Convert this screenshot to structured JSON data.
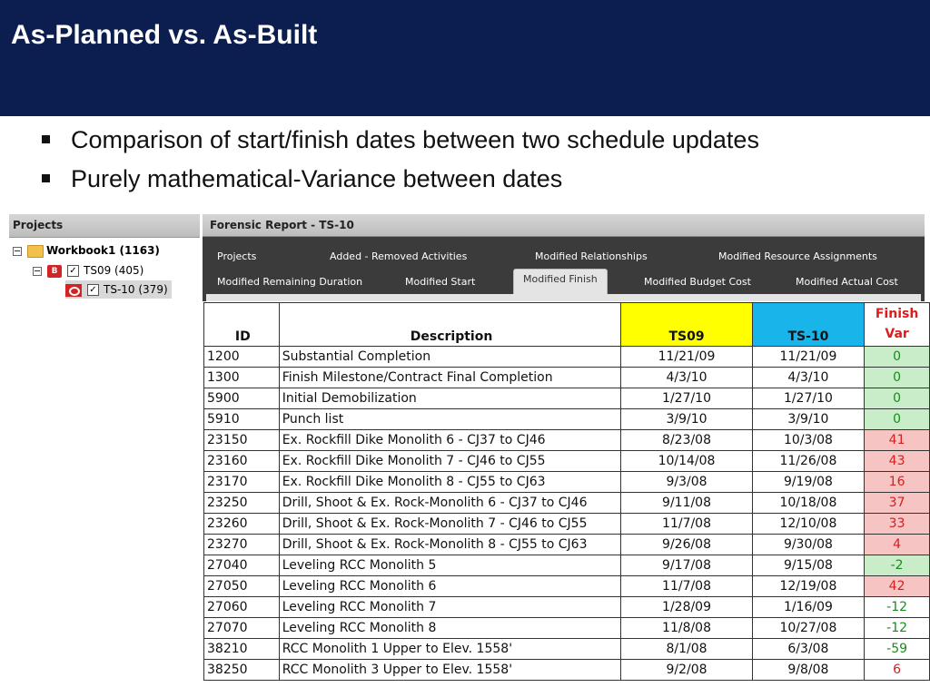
{
  "slide": {
    "title": "As-Planned vs. As-Built",
    "bullets": [
      "Comparison of start/finish dates between two schedule updates",
      "Purely mathematical-Variance between dates"
    ]
  },
  "projects_panel": {
    "header": "Projects",
    "workbook": "Workbook1 (1163)",
    "items": [
      {
        "icon": "B",
        "label": "TS09 (405)"
      },
      {
        "icon": "O",
        "label": "TS-10 (379)"
      }
    ]
  },
  "report": {
    "title": "Forensic Report - TS-10",
    "tabs_row1": [
      "Projects",
      "Added - Removed Activities",
      "Modified Relationships",
      "Modified Resource Assignments"
    ],
    "tabs_row2": [
      "Modified Remaining Duration",
      "Modified Start",
      "Modified Finish",
      "Modified Budget Cost",
      "Modified Actual Cost"
    ],
    "active_tab": "Modified Finish"
  },
  "table": {
    "headers": {
      "id": "ID",
      "description": "Description",
      "ts09": "TS09",
      "ts10": "TS-10",
      "var1": "Finish",
      "var2": "Var"
    },
    "colors": {
      "ts09": "#ffff00",
      "ts10": "#19b4ea",
      "green": "#c9ecc9",
      "red": "#f7c4c4"
    },
    "rows": [
      {
        "id": "1200",
        "desc": "Substantial Completion",
        "ts09": "11/21/09",
        "ts10": "11/21/09",
        "var": "0",
        "tone": "green"
      },
      {
        "id": "1300",
        "desc": "Finish Milestone/Contract Final Completion",
        "ts09": "4/3/10",
        "ts10": "4/3/10",
        "var": "0",
        "tone": "green"
      },
      {
        "id": "5900",
        "desc": "Initial Demobilization",
        "ts09": "1/27/10",
        "ts10": "1/27/10",
        "var": "0",
        "tone": "green"
      },
      {
        "id": "5910",
        "desc": "Punch list",
        "ts09": "3/9/10",
        "ts10": "3/9/10",
        "var": "0",
        "tone": "green"
      },
      {
        "id": "23150",
        "desc": "Ex. Rockfill Dike Monolith 6 - CJ37 to CJ46",
        "ts09": "8/23/08",
        "ts10": "10/3/08",
        "var": "41",
        "tone": "red"
      },
      {
        "id": "23160",
        "desc": "Ex. Rockfill Dike Monolith 7 - CJ46 to CJ55",
        "ts09": "10/14/08",
        "ts10": "11/26/08",
        "var": "43",
        "tone": "red"
      },
      {
        "id": "23170",
        "desc": "Ex. Rockfill Dike Monolith 8 - CJ55 to CJ63",
        "ts09": "9/3/08",
        "ts10": "9/19/08",
        "var": "16",
        "tone": "red"
      },
      {
        "id": "23250",
        "desc": "Drill, Shoot & Ex. Rock-Monolith 6 - CJ37 to CJ46",
        "ts09": "9/11/08",
        "ts10": "10/18/08",
        "var": "37",
        "tone": "red"
      },
      {
        "id": "23260",
        "desc": "Drill, Shoot & Ex. Rock-Monolith 7 - CJ46 to CJ55",
        "ts09": "11/7/08",
        "ts10": "12/10/08",
        "var": "33",
        "tone": "red"
      },
      {
        "id": "23270",
        "desc": "Drill, Shoot & Ex. Rock-Monolith 8 - CJ55 to CJ63",
        "ts09": "9/26/08",
        "ts10": "9/30/08",
        "var": "4",
        "tone": "red"
      },
      {
        "id": "27040",
        "desc": "Leveling RCC Monolith 5",
        "ts09": "9/17/08",
        "ts10": "9/15/08",
        "var": "-2",
        "tone": "green"
      },
      {
        "id": "27050",
        "desc": "Leveling RCC Monolith 6",
        "ts09": "11/7/08",
        "ts10": "12/19/08",
        "var": "42",
        "tone": "red"
      },
      {
        "id": "27060",
        "desc": "Leveling RCC Monolith 7",
        "ts09": "1/28/09",
        "ts10": "1/16/09",
        "var": "-12",
        "tone": "green-white"
      },
      {
        "id": "27070",
        "desc": "Leveling RCC Monolith 8",
        "ts09": "11/8/08",
        "ts10": "10/27/08",
        "var": "-12",
        "tone": "green-white"
      },
      {
        "id": "38210",
        "desc": "RCC Monolith 1 Upper to Elev. 1558'",
        "ts09": "8/1/08",
        "ts10": "6/3/08",
        "var": "-59",
        "tone": "green-white"
      },
      {
        "id": "38250",
        "desc": "RCC Monolith 3 Upper to Elev. 1558'",
        "ts09": "9/2/08",
        "ts10": "9/8/08",
        "var": "6",
        "tone": "red-white"
      }
    ]
  }
}
